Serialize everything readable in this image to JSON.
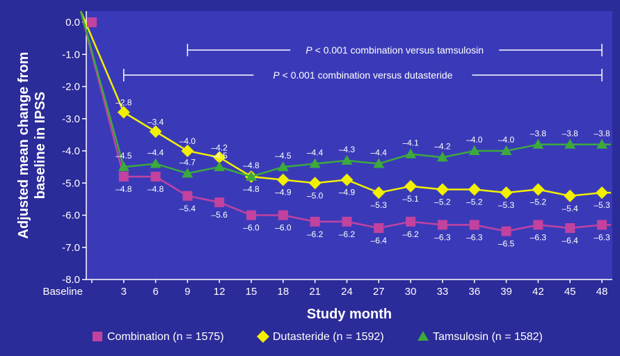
{
  "chart_data": {
    "type": "line",
    "xlabel": "Study month",
    "ylabel_lines": [
      "Adjusted mean change from",
      "baseline in IPSS"
    ],
    "x_labels": [
      "Baseline",
      "3",
      "6",
      "9",
      "12",
      "15",
      "18",
      "21",
      "24",
      "27",
      "30",
      "33",
      "36",
      "39",
      "42",
      "45",
      "48"
    ],
    "y_ticks": [
      "0.0",
      "-1.0",
      "-2.0",
      "-3.0",
      "-4.0",
      "-5.0",
      "-6.0",
      "-7.0",
      "-8.0"
    ],
    "ylim": [
      -8.0,
      0.0
    ],
    "series": [
      {
        "name": "Combination (n = 1575)",
        "marker": "square",
        "color": "#c2429f",
        "values": [
          0.0,
          -4.8,
          -4.8,
          -5.4,
          -5.6,
          -6.0,
          -6.0,
          -6.2,
          -6.2,
          -6.4,
          -6.2,
          -6.3,
          -6.3,
          -6.5,
          -6.3,
          -6.4,
          -6.3
        ],
        "labels": [
          "",
          "–4.8",
          "–4.8",
          "–5.4",
          "–5.6",
          "–6.0",
          "–6.0",
          "–6.2",
          "–6.2",
          "–6.4",
          "–6.2",
          "–6.3",
          "–6.3",
          "–6.5",
          "–6.3",
          "–6.4",
          "–6.3"
        ]
      },
      {
        "name": "Dutasteride (n = 1592)",
        "marker": "diamond",
        "color": "#f2f000",
        "values": [
          0.0,
          -2.8,
          -3.4,
          -4.0,
          -4.2,
          -4.8,
          -4.9,
          -5.0,
          -4.9,
          -5.3,
          -5.1,
          -5.2,
          -5.2,
          -5.3,
          -5.2,
          -5.4,
          -5.3
        ],
        "labels": [
          "",
          "–2.8",
          "–3.4",
          "–4.0",
          "–4.2",
          "–4.8",
          "–4.9",
          "–5.0",
          "–4.9",
          "–5.3",
          "–5.1",
          "–5.2",
          "–5.2",
          "–5.3",
          "–5.2",
          "–5.4",
          "–5.3"
        ]
      },
      {
        "name": "Tamsulosin (n = 1582)",
        "marker": "triangle",
        "color": "#3caa3c",
        "values": [
          0.0,
          -4.5,
          -4.4,
          -4.7,
          -4.5,
          -4.8,
          -4.5,
          -4.4,
          -4.3,
          -4.4,
          -4.1,
          -4.2,
          -4.0,
          -4.0,
          -3.8,
          -3.8,
          -3.8
        ],
        "labels": [
          "",
          "–4.5",
          "–4.4",
          "–4.7",
          "–4.5",
          "–4.8",
          "–4.5",
          "–4.4",
          "–4.3",
          "–4.4",
          "–4.1",
          "–4.2",
          "–4.0",
          "–4.0",
          "–3.8",
          "–3.8",
          "–3.8"
        ]
      }
    ],
    "annotations": [
      {
        "p": "P",
        "text": " < 0.001 combination versus tamsulosin",
        "from": "9",
        "to": "48"
      },
      {
        "p": "P",
        "text": " < 0.001 combination versus dutasteride",
        "from": "3",
        "to": "48"
      }
    ],
    "legend_position": "bottom",
    "grid": false,
    "colors": {
      "background": "#2b2b99",
      "plot_background": "#3a3ab8",
      "axis": "#ffffff",
      "text": "#ffffff"
    }
  }
}
